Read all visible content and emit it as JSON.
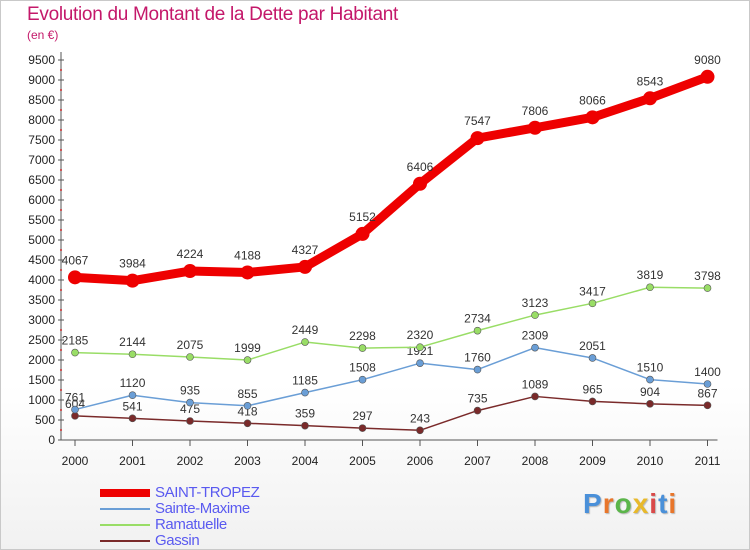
{
  "title": "Evolution du Montant de la Dette par Habitant",
  "subtitle": "(en €)",
  "logo": {
    "text": "Proxiti",
    "colors": [
      "#4a90d9",
      "#e8762b",
      "#5bb54a",
      "#e8b92b",
      "#d94a4a",
      "#4a90d9",
      "#e8762b"
    ]
  },
  "chart_data": {
    "type": "line",
    "categories": [
      "2000",
      "2001",
      "2002",
      "2003",
      "2004",
      "2005",
      "2006",
      "2007",
      "2008",
      "2009",
      "2010",
      "2011"
    ],
    "ylim": [
      0,
      9500
    ],
    "yticks": [
      0,
      500,
      1000,
      1500,
      2000,
      2500,
      3000,
      3500,
      4000,
      4500,
      5000,
      5500,
      6000,
      6500,
      7000,
      7500,
      8000,
      8500,
      9000,
      9500
    ],
    "grid": false,
    "legend_position": "bottom-left",
    "series": [
      {
        "name": "SAINT-TROPEZ",
        "color": "#ee0000",
        "values": [
          4067,
          3984,
          4224,
          4188,
          4327,
          5152,
          6406,
          7547,
          7806,
          8066,
          8543,
          9080
        ]
      },
      {
        "name": "Sainte-Maxime",
        "color": "#6a9ed6",
        "values": [
          761,
          1120,
          935,
          855,
          1185,
          1508,
          1921,
          1760,
          2309,
          2051,
          1510,
          1400
        ]
      },
      {
        "name": "Ramatuelle",
        "color": "#99dd66",
        "values": [
          2185,
          2144,
          2075,
          1999,
          2449,
          2298,
          2320,
          2734,
          3123,
          3417,
          3819,
          3798
        ]
      },
      {
        "name": "Gassin",
        "color": "#7a2a2a",
        "values": [
          604,
          541,
          475,
          418,
          359,
          297,
          243,
          735,
          1089,
          965,
          904,
          867
        ]
      }
    ]
  }
}
